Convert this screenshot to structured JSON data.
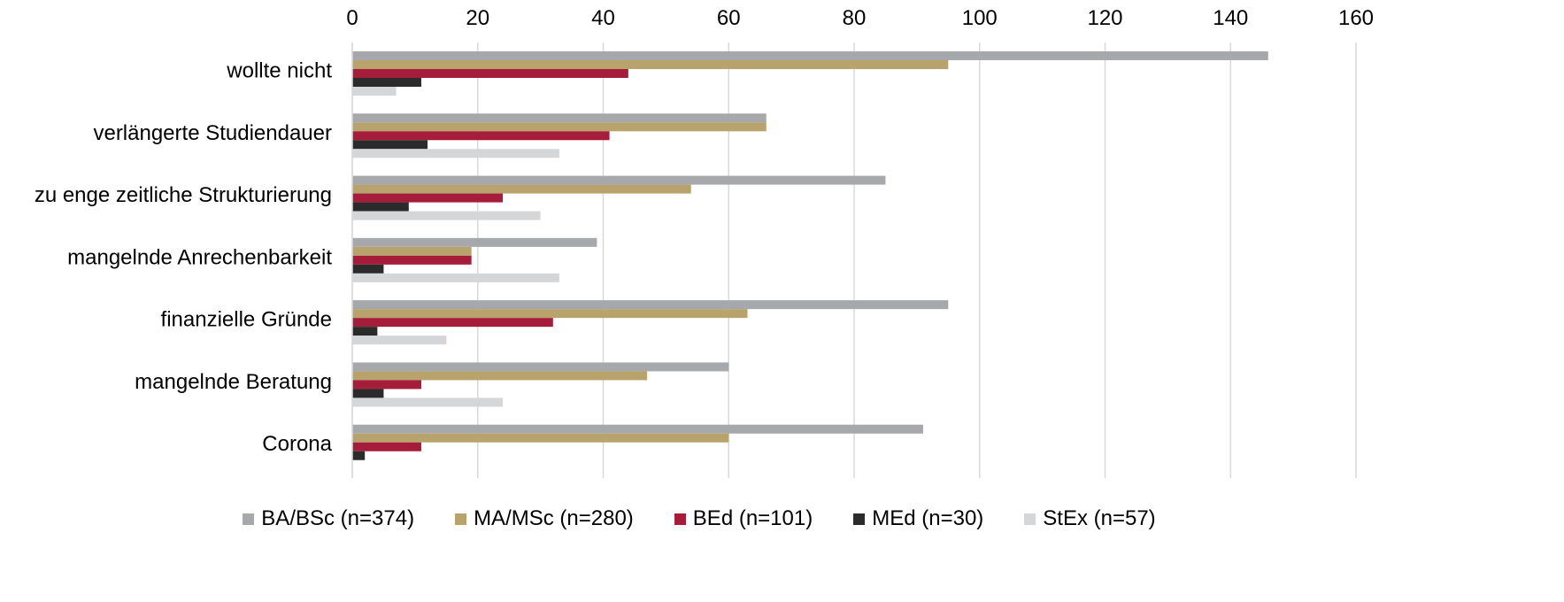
{
  "chart_data": {
    "type": "bar",
    "orientation": "horizontal",
    "categories": [
      "wollte nicht",
      "verlängerte Studiendauer",
      "zu enge zeitliche Strukturierung",
      "mangelnde Anrechenbarkeit",
      "finanzielle Gründe",
      "mangelnde Beratung",
      "Corona"
    ],
    "series": [
      {
        "name": "BA/BSc (n=374)",
        "color": "#a6a8ab",
        "values": [
          146,
          66,
          85,
          39,
          95,
          60,
          91
        ]
      },
      {
        "name": "MA/MSc (n=280)",
        "color": "#b8a36c",
        "values": [
          95,
          66,
          54,
          19,
          63,
          47,
          60
        ]
      },
      {
        "name": "BEd (n=101)",
        "color": "#a51d3a",
        "values": [
          44,
          41,
          24,
          19,
          32,
          11,
          11
        ]
      },
      {
        "name": "MEd (n=30)",
        "color": "#2b2b2b",
        "values": [
          11,
          12,
          9,
          5,
          4,
          5,
          2
        ]
      },
      {
        "name": "StEx (n=57)",
        "color": "#d5d6d8",
        "values": [
          7,
          33,
          30,
          33,
          15,
          24,
          0
        ]
      }
    ],
    "xlim": [
      0,
      160
    ],
    "xticks": [
      "0",
      "20",
      "40",
      "60",
      "80",
      "100",
      "120",
      "140",
      "160"
    ],
    "grid": true,
    "x_axis_position": "top",
    "legend_position": "bottom"
  }
}
